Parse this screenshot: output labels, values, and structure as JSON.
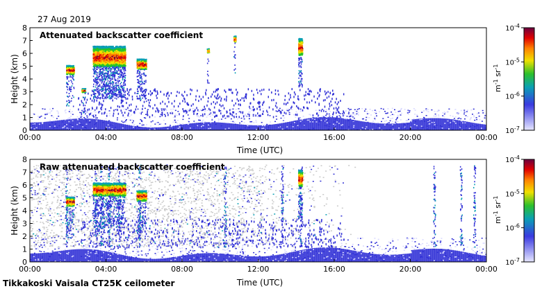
{
  "date_label": "27 Aug 2019",
  "footer_label": "Tikkakoski Vaisala CT25K ceilometer",
  "colors": {
    "scale": [
      "#d8d8ff",
      "#2f2fd6",
      "#0aa0b4",
      "#27c327",
      "#f0e000",
      "#ff8000",
      "#e00000",
      "#7a003a"
    ],
    "noise_gray": "#c9c9c9"
  },
  "chart_data": [
    {
      "type": "heatmap",
      "title": "Attenuated backscatter coefficient",
      "xlabel": "Time (UTC)",
      "ylabel": "Height (km)",
      "xticks": [
        "00:00",
        "04:00",
        "08:00",
        "12:00",
        "16:00",
        "20:00",
        "00:00"
      ],
      "xlim_hours": [
        0,
        24
      ],
      "ylim": [
        0,
        8
      ],
      "yticks": [
        0,
        1,
        2,
        3,
        4,
        5,
        6,
        7,
        8
      ],
      "colorbar": {
        "scale": "log",
        "ticks": [
          "10-7",
          "10-6",
          "10-5",
          "10-4"
        ],
        "tick_base": "10",
        "tick_exponents": [
          "-7",
          "-6",
          "-5",
          "-4"
        ],
        "unit_label": "m-1 sr-1",
        "unit_parts": [
          "m",
          "-1",
          " sr",
          "-1"
        ]
      },
      "features": [
        {
          "kind": "boundary_layer",
          "t_start": 0,
          "t_end": 24,
          "h_top": 1.1
        },
        {
          "kind": "cloud",
          "t_start": 3.3,
          "t_end": 5.0,
          "h_base": 5.0,
          "h_top": 6.6
        },
        {
          "kind": "cloud",
          "t_start": 1.9,
          "t_end": 2.3,
          "h_base": 4.4,
          "h_top": 5.1
        },
        {
          "kind": "cloud",
          "t_start": 2.7,
          "t_end": 2.9,
          "h_base": 3.0,
          "h_top": 3.3
        },
        {
          "kind": "cloud",
          "t_start": 5.6,
          "t_end": 6.1,
          "h_base": 4.8,
          "h_top": 5.6
        },
        {
          "kind": "cloud",
          "t_start": 10.7,
          "t_end": 10.8,
          "h_base": 6.9,
          "h_top": 7.4
        },
        {
          "kind": "cloud",
          "t_start": 14.1,
          "t_end": 14.3,
          "h_base": 5.9,
          "h_top": 7.2
        },
        {
          "kind": "cloud",
          "t_start": 9.3,
          "t_end": 9.4,
          "h_base": 6.1,
          "h_top": 6.4
        }
      ]
    },
    {
      "type": "heatmap",
      "title": "Raw attenuated backscatter coefficient",
      "xlabel": "Time (UTC)",
      "ylabel": "Height (km)",
      "xticks": [
        "00:00",
        "04:00",
        "08:00",
        "12:00",
        "16:00",
        "20:00",
        "00:00"
      ],
      "xlim_hours": [
        0,
        24
      ],
      "ylim": [
        0,
        8
      ],
      "yticks": [
        0,
        1,
        2,
        3,
        4,
        5,
        6,
        7,
        8
      ],
      "colorbar": {
        "scale": "log",
        "ticks": [
          "10-7",
          "10-6",
          "10-5",
          "10-4"
        ],
        "tick_base": "10",
        "tick_exponents": [
          "-7",
          "-6",
          "-5",
          "-4"
        ],
        "unit_label": "m-1 sr-1",
        "unit_parts": [
          "m",
          "-1",
          " sr",
          "-1"
        ]
      },
      "features": [
        {
          "kind": "boundary_layer",
          "t_start": 0,
          "t_end": 24,
          "h_top": 1.2
        },
        {
          "kind": "noise",
          "t_start": 0,
          "t_end": 17.5,
          "h_base": 1.2,
          "h_top": 7.6
        },
        {
          "kind": "cloud",
          "t_start": 3.3,
          "t_end": 5.0,
          "h_base": 5.2,
          "h_top": 6.2
        },
        {
          "kind": "cloud",
          "t_start": 1.9,
          "t_end": 2.3,
          "h_base": 4.4,
          "h_top": 5.1
        },
        {
          "kind": "cloud",
          "t_start": 5.6,
          "t_end": 6.1,
          "h_base": 4.8,
          "h_top": 5.6
        },
        {
          "kind": "cloud",
          "t_start": 14.1,
          "t_end": 14.3,
          "h_base": 5.9,
          "h_top": 7.2
        }
      ]
    }
  ]
}
